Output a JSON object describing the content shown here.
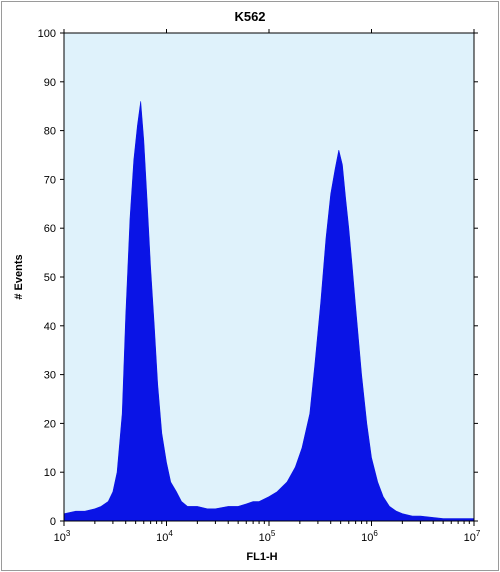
{
  "chart_data": {
    "type": "area",
    "title": "K562",
    "xlabel": "FL1-H",
    "ylabel": "# Events",
    "x_scale": "log",
    "xlim": [
      1000,
      10000000
    ],
    "ylim": [
      0,
      100
    ],
    "x_tick_labels": [
      {
        "base": "10",
        "exp": "3"
      },
      {
        "base": "10",
        "exp": "4"
      },
      {
        "base": "10",
        "exp": "5"
      },
      {
        "base": "10",
        "exp": "6"
      },
      {
        "base": "10",
        "exp": "7"
      }
    ],
    "y_ticks": [
      0,
      10,
      20,
      30,
      40,
      50,
      60,
      70,
      80,
      90,
      100
    ],
    "grid": false,
    "colors": {
      "fill": "#0a14e6",
      "plot_bg": "#dff2fb",
      "frame": "#9a9a9a"
    },
    "series": [
      {
        "x": [
          1000,
          1300,
          1600,
          2000,
          2300,
          2700,
          3000,
          3300,
          3700,
          4000,
          4400,
          4800,
          5200,
          5600,
          6000,
          6500,
          7000,
          7600,
          8200,
          9000,
          10000,
          11000,
          12500,
          14000,
          16000,
          18000,
          20000,
          25000,
          30000,
          40000,
          50000,
          60000,
          70000,
          80000,
          100000,
          120000,
          150000,
          180000,
          210000,
          250000,
          280000,
          320000,
          360000,
          400000,
          440000,
          480000,
          520000,
          560000,
          600000,
          650000,
          700000,
          800000,
          900000,
          1000000,
          1150000,
          1300000,
          1500000,
          1750000,
          2000000,
          2500000,
          3000000,
          5000000,
          10000000
        ],
        "values": [
          1.5,
          2,
          2,
          2.5,
          3,
          4,
          6,
          10,
          22,
          42,
          62,
          74,
          81,
          86,
          78,
          65,
          52,
          40,
          28,
          18,
          12,
          8,
          6,
          4,
          3,
          3,
          3,
          2.5,
          2.5,
          3,
          3,
          3.5,
          4,
          4,
          5,
          6,
          8,
          11,
          15,
          22,
          32,
          45,
          58,
          67,
          72,
          76,
          73,
          66,
          60,
          52,
          44,
          30,
          20,
          13,
          8,
          5,
          3,
          2,
          1.5,
          1,
          1,
          0.5,
          0.5
        ]
      }
    ]
  }
}
